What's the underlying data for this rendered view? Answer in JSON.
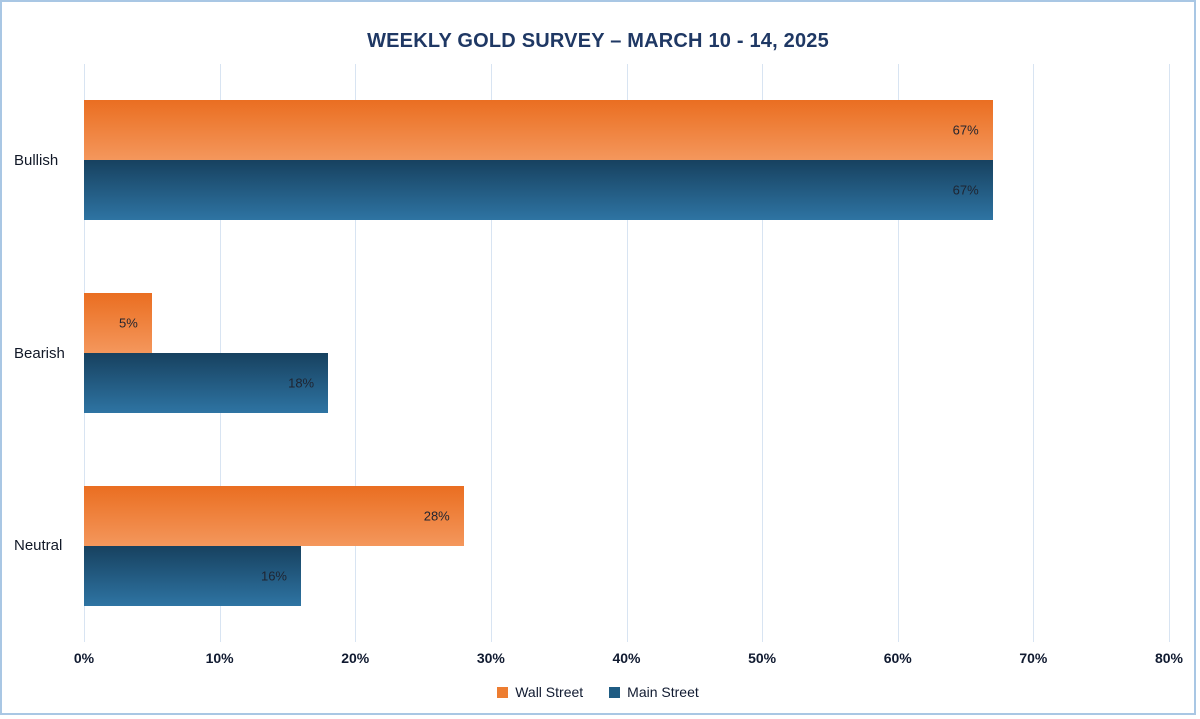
{
  "chart_data": {
    "type": "bar",
    "orientation": "horizontal",
    "title": "WEEKLY GOLD SURVEY – MARCH 10 - 14, 2025",
    "categories": [
      "Bullish",
      "Bearish",
      "Neutral"
    ],
    "series": [
      {
        "name": "Wall Street",
        "values": [
          67,
          5,
          28
        ],
        "labels": [
          "67%",
          "5%",
          "28%"
        ],
        "color_top": "#EA6E21",
        "color_bottom": "#F4975C",
        "swatch": "#ED7D31"
      },
      {
        "name": "Main Street",
        "values": [
          67,
          18,
          16
        ],
        "labels": [
          "67%",
          "18%",
          "16%"
        ],
        "color_top": "#17415F",
        "color_bottom": "#2E74A3",
        "swatch": "#1F5C83"
      }
    ],
    "xlabel": "",
    "ylabel": "",
    "xlim": [
      0,
      80
    ],
    "x_ticks": [
      "0%",
      "10%",
      "20%",
      "30%",
      "40%",
      "50%",
      "60%",
      "70%",
      "80%"
    ],
    "grid": true,
    "legend_position": "bottom"
  },
  "colors": {
    "title": "#1F3864",
    "axis_text": "#101A30",
    "gridline": "#D8E4F2",
    "frame_border": "#A9C7E4",
    "background": "#FFFFFF",
    "data_label": "#1F2430"
  }
}
